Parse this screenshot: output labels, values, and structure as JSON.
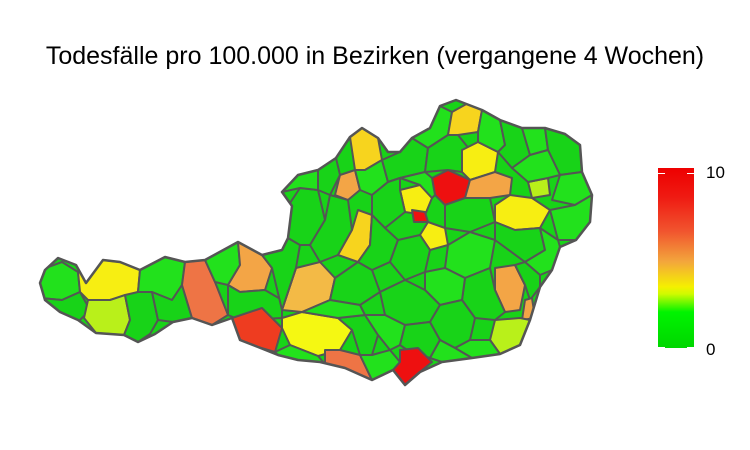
{
  "title": "Todesfälle pro 100.000 in Bezirken (vergangene 4 Wochen)",
  "legend": {
    "min_label": "0",
    "max_label": "10",
    "scale": [
      "#00d600",
      "#00f400",
      "#cffb00",
      "#f5f000",
      "#f3a63c",
      "#f1542e",
      "#ee0000"
    ]
  },
  "colors": {
    "border": "#555555",
    "green": "#18d318",
    "light_green": "#22e11c",
    "lime": "#b9f01a",
    "yellow": "#f7ee12",
    "orange": "#f3a546",
    "orange_red": "#ee7445",
    "red": "#ee1010"
  }
}
